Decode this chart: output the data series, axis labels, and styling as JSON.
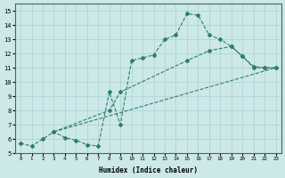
{
  "line1_x": [
    0,
    1,
    2,
    3,
    4,
    5,
    6,
    7,
    8,
    9,
    10,
    11,
    12,
    13,
    14,
    15,
    16,
    17,
    18,
    19,
    20,
    21,
    22,
    23
  ],
  "line1_y": [
    5.7,
    5.5,
    6.0,
    6.5,
    6.1,
    5.9,
    5.6,
    5.5,
    9.3,
    7.0,
    11.5,
    11.7,
    11.9,
    13.0,
    13.3,
    14.8,
    14.7,
    13.3,
    13.0,
    12.5,
    11.8,
    11.1,
    11.0,
    11.0
  ],
  "line2_x": [
    3,
    8,
    9,
    15,
    17,
    19,
    20,
    21,
    22,
    23
  ],
  "line2_y": [
    6.5,
    8.0,
    9.3,
    11.5,
    12.2,
    12.5,
    11.8,
    11.0,
    11.0,
    11.0
  ],
  "line3_x": [
    3,
    23
  ],
  "line3_y": [
    6.5,
    11.0
  ],
  "color": "#2e7d6e",
  "bg_color": "#cce8e8",
  "grid_color": "#aad0d0",
  "xlabel": "Humidex (Indice chaleur)",
  "xlim": [
    -0.5,
    23.5
  ],
  "ylim": [
    5,
    15.5
  ],
  "yticks": [
    5,
    6,
    7,
    8,
    9,
    10,
    11,
    12,
    13,
    14,
    15
  ],
  "xticks": [
    0,
    1,
    2,
    3,
    4,
    5,
    6,
    7,
    8,
    9,
    10,
    11,
    12,
    13,
    14,
    15,
    16,
    17,
    18,
    19,
    20,
    21,
    22,
    23
  ]
}
